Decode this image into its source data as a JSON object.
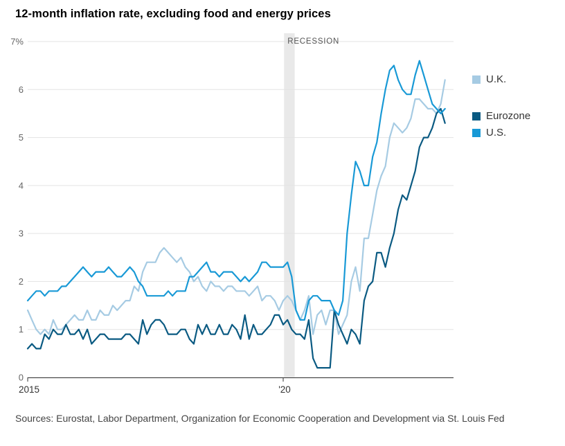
{
  "title": "12-month inflation rate, excluding food and energy prices",
  "source": "Sources: Eurostat, Labor Department, Organization for Economic Cooperation and Development via St. Louis Fed",
  "legend": {
    "items": [
      {
        "label": "U.K.",
        "color": "#a6cbe3"
      },
      {
        "label": "Eurozone",
        "color": "#0a5a82"
      },
      {
        "label": "U.S.",
        "color": "#1899d6"
      }
    ]
  },
  "chart_data": {
    "type": "line",
    "title": "12-month inflation rate, excluding food and energy prices",
    "x_start": "2015-01",
    "frequency": "monthly",
    "xlabel": "",
    "ylabel": "Percent",
    "ylim": [
      0,
      7
    ],
    "grid": true,
    "legend_position": "right",
    "y_ticks": [
      0,
      1,
      2,
      3,
      4,
      5,
      6,
      7
    ],
    "y_tick_labels": [
      "0",
      "1",
      "2",
      "3",
      "4",
      "5",
      "6",
      "7%"
    ],
    "x_tick_months": [
      0,
      60
    ],
    "x_tick_labels": [
      "2015",
      "'20"
    ],
    "recession": {
      "label": "RECESSION",
      "start_month": 60.2,
      "end_month": 62.7
    },
    "series": [
      {
        "name": "U.K.",
        "color": "#a6cbe3",
        "values": [
          1.4,
          1.2,
          1.0,
          0.9,
          1.0,
          0.9,
          1.2,
          1.0,
          1.0,
          1.1,
          1.2,
          1.3,
          1.2,
          1.2,
          1.4,
          1.2,
          1.2,
          1.4,
          1.3,
          1.3,
          1.5,
          1.4,
          1.5,
          1.6,
          1.6,
          1.9,
          1.8,
          2.2,
          2.4,
          2.4,
          2.4,
          2.6,
          2.7,
          2.6,
          2.5,
          2.4,
          2.5,
          2.3,
          2.2,
          2.0,
          2.1,
          1.9,
          1.8,
          2.0,
          1.9,
          1.9,
          1.8,
          1.9,
          1.9,
          1.8,
          1.8,
          1.8,
          1.7,
          1.8,
          1.9,
          1.6,
          1.7,
          1.7,
          1.6,
          1.4,
          1.6,
          1.7,
          1.6,
          1.4,
          1.2,
          1.4,
          1.7,
          0.9,
          1.3,
          1.4,
          1.1,
          1.4,
          1.4,
          0.9,
          1.1,
          1.3,
          2.0,
          2.3,
          1.8,
          2.9,
          2.9,
          3.4,
          3.9,
          4.2,
          4.4,
          5.0,
          5.3,
          5.2,
          5.1,
          5.2,
          5.4,
          5.8,
          5.8,
          5.7,
          5.6,
          5.6,
          5.5,
          5.7,
          6.2
        ]
      },
      {
        "name": "Eurozone",
        "color": "#0a5a82",
        "values": [
          0.6,
          0.7,
          0.6,
          0.6,
          0.9,
          0.8,
          1.0,
          0.9,
          0.9,
          1.1,
          0.9,
          0.9,
          1.0,
          0.8,
          1.0,
          0.7,
          0.8,
          0.9,
          0.9,
          0.8,
          0.8,
          0.8,
          0.8,
          0.9,
          0.9,
          0.8,
          0.7,
          1.2,
          0.9,
          1.1,
          1.2,
          1.2,
          1.1,
          0.9,
          0.9,
          0.9,
          1.0,
          1.0,
          0.8,
          0.7,
          1.1,
          0.9,
          1.1,
          0.9,
          0.9,
          1.1,
          0.9,
          0.9,
          1.1,
          1.0,
          0.8,
          1.3,
          0.8,
          1.1,
          0.9,
          0.9,
          1.0,
          1.1,
          1.3,
          1.3,
          1.1,
          1.2,
          1.0,
          0.9,
          0.9,
          0.8,
          1.2,
          0.4,
          0.2,
          0.2,
          0.2,
          0.2,
          1.4,
          1.1,
          0.9,
          0.7,
          1.0,
          0.9,
          0.7,
          1.6,
          1.9,
          2.0,
          2.6,
          2.6,
          2.3,
          2.7,
          3.0,
          3.5,
          3.8,
          3.7,
          4.0,
          4.3,
          4.8,
          5.0,
          5.0,
          5.2,
          5.5,
          5.6,
          5.3
        ]
      },
      {
        "name": "U.S.",
        "color": "#1899d6",
        "values": [
          1.6,
          1.7,
          1.8,
          1.8,
          1.7,
          1.8,
          1.8,
          1.8,
          1.9,
          1.9,
          2.0,
          2.1,
          2.2,
          2.3,
          2.2,
          2.1,
          2.2,
          2.2,
          2.2,
          2.3,
          2.2,
          2.1,
          2.1,
          2.2,
          2.3,
          2.2,
          2.0,
          1.9,
          1.7,
          1.7,
          1.7,
          1.7,
          1.7,
          1.8,
          1.7,
          1.8,
          1.8,
          1.8,
          2.1,
          2.1,
          2.2,
          2.3,
          2.4,
          2.2,
          2.2,
          2.1,
          2.2,
          2.2,
          2.2,
          2.1,
          2.0,
          2.1,
          2.0,
          2.1,
          2.2,
          2.4,
          2.4,
          2.3,
          2.3,
          2.3,
          2.3,
          2.4,
          2.1,
          1.4,
          1.2,
          1.2,
          1.6,
          1.7,
          1.7,
          1.6,
          1.6,
          1.6,
          1.4,
          1.3,
          1.6,
          3.0,
          3.8,
          4.5,
          4.3,
          4.0,
          4.0,
          4.6,
          4.9,
          5.5,
          6.0,
          6.4,
          6.5,
          6.2,
          6.0,
          5.9,
          5.9,
          6.3,
          6.6,
          6.3,
          6.0,
          5.7,
          5.6,
          5.5,
          5.6
        ]
      }
    ]
  }
}
